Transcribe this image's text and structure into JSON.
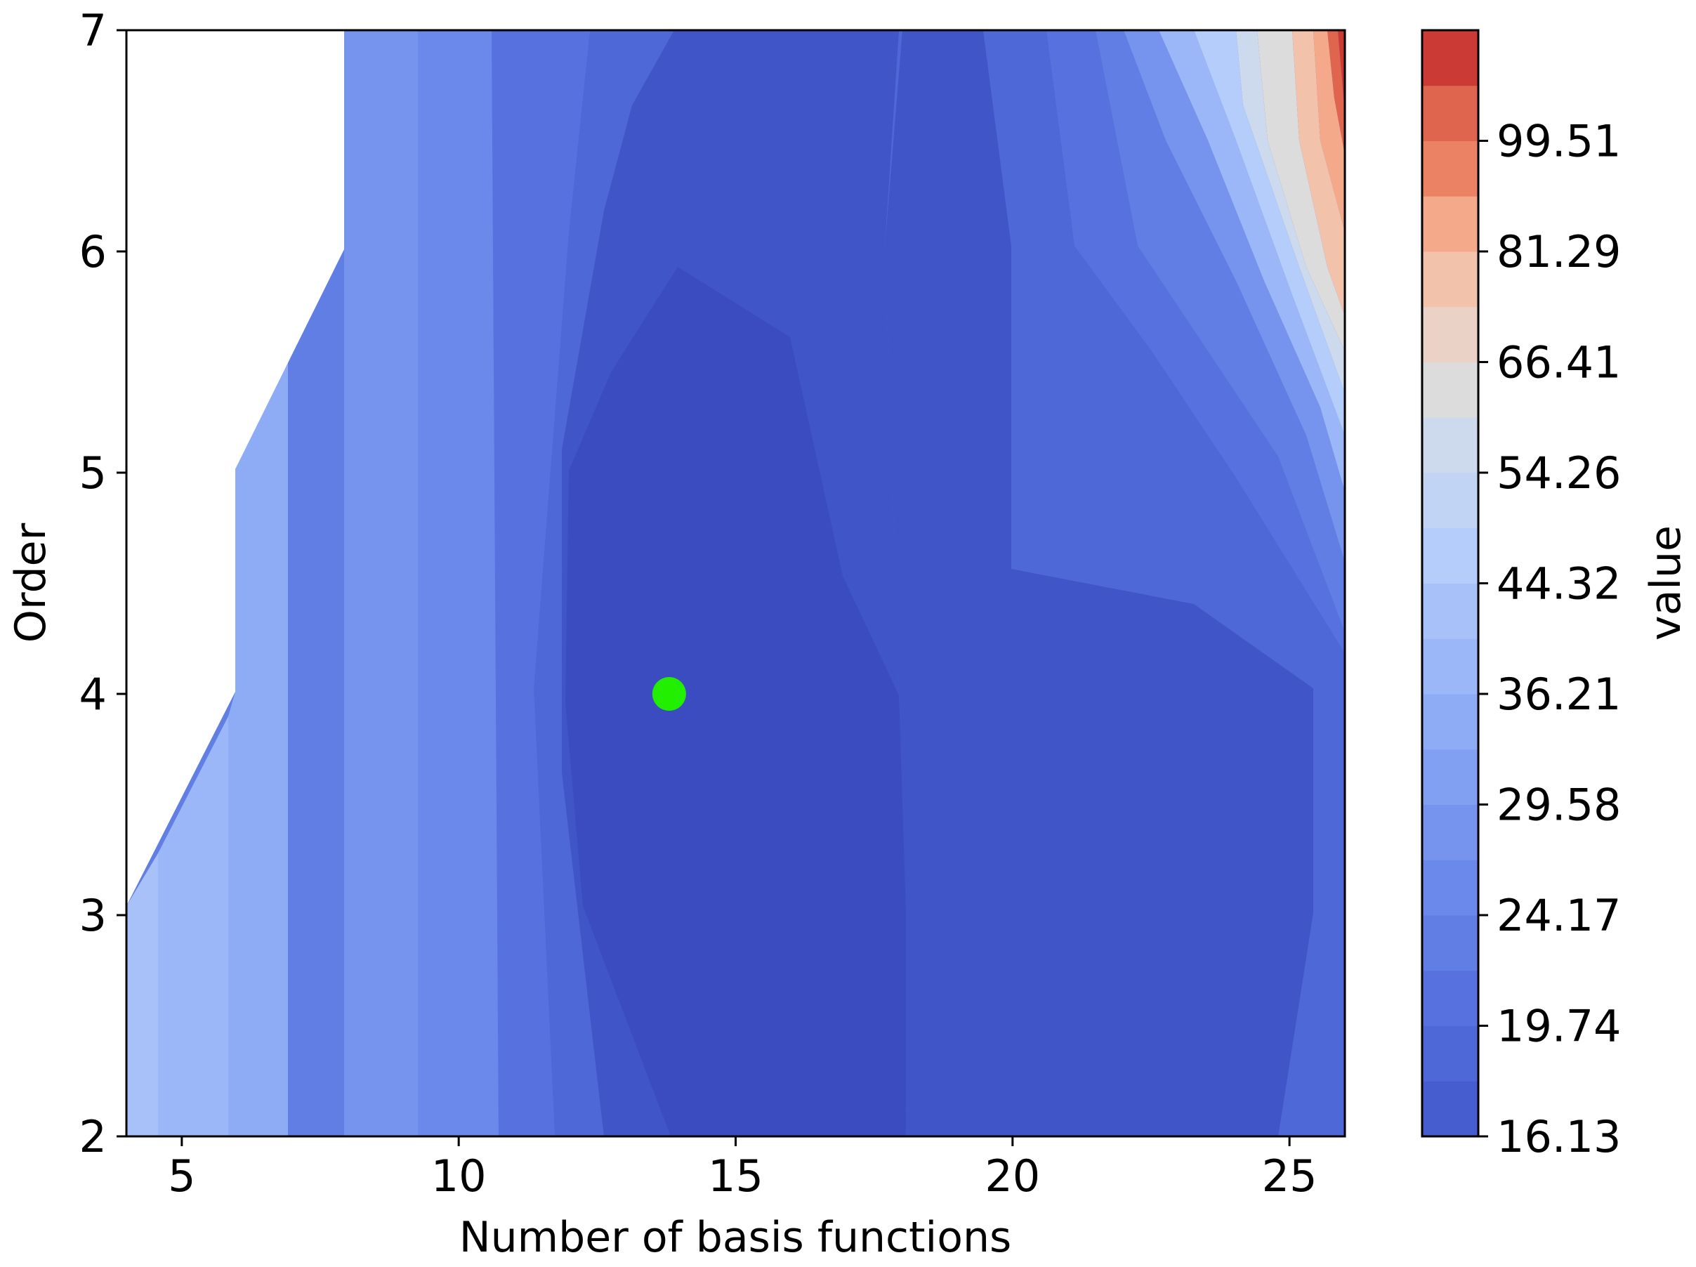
{
  "chart_data": {
    "type": "contour",
    "xlabel": "Number of basis functions",
    "ylabel": "Order",
    "colorbar_label": "value",
    "xlim": [
      4,
      26
    ],
    "ylim": [
      2,
      7
    ],
    "xticks": [
      5,
      10,
      15,
      20,
      25
    ],
    "yticks": [
      2,
      3,
      4,
      5,
      6,
      7
    ],
    "colorbar_ticks": [
      "16.13",
      "19.74",
      "24.17",
      "29.58",
      "36.21",
      "44.32",
      "54.26",
      "66.41",
      "81.29",
      "99.51"
    ],
    "colorbar_levels": [
      16.13,
      17.8,
      19.74,
      21.9,
      24.17,
      26.8,
      29.58,
      32.7,
      36.21,
      40.1,
      44.32,
      49.0,
      54.26,
      60.1,
      66.41,
      73.5,
      81.29,
      90.0,
      99.51,
      110.0
    ],
    "colormap": [
      "#3b4cc0",
      "#4055c8",
      "#465dd0",
      "#4e68d8",
      "#5772de",
      "#617ee4",
      "#6b89ea",
      "#7694ee",
      "#82a0f2",
      "#8eabf6",
      "#9bb7f8",
      "#a8c1f9",
      "#b5cdfa",
      "#c1d4f4",
      "#cdd9ec",
      "#dddcdc",
      "#ead3c6",
      "#f2c2ab",
      "#f5a98b",
      "#ec8264",
      "#e0654f",
      "#cc3a35"
    ],
    "grid": false,
    "highlight_point": {
      "x": 13.8,
      "y": 4,
      "color": "#22ee00"
    },
    "nan_region": "upper-left (x < ~8, order above ~3–6)"
  }
}
